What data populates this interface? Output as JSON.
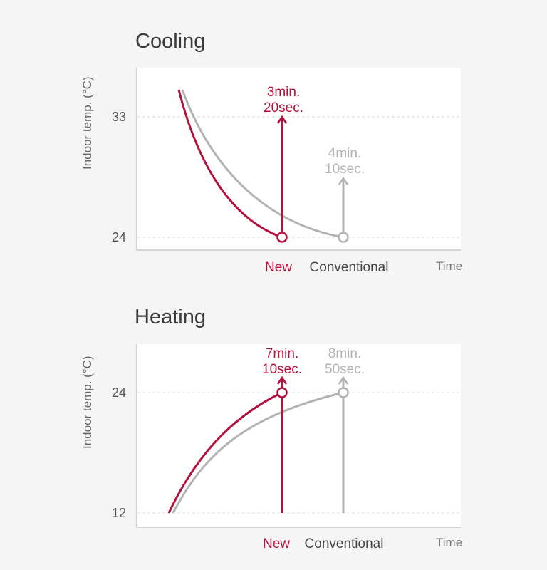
{
  "colors": {
    "new": "#b5113e",
    "conventional": "#b3b3b3",
    "conventional_label": "#444444"
  },
  "chart_data": [
    {
      "type": "line",
      "title": "Cooling",
      "xlabel": "Time",
      "ylabel": "Indoor temp. (°C)",
      "y_ticks": [
        "33",
        "24"
      ],
      "ylim": [
        22,
        38
      ],
      "x_markers": [
        "New",
        "Conventional"
      ],
      "series": [
        {
          "name": "New",
          "annotation": [
            "3min.",
            "20sec."
          ],
          "time_min": 3.33,
          "start_temp": 36,
          "end_temp": 24
        },
        {
          "name": "Conventional",
          "annotation": [
            "4min.",
            "10sec."
          ],
          "time_min": 4.17,
          "start_temp": 36,
          "end_temp": 24
        }
      ]
    },
    {
      "type": "line",
      "title": "Heating",
      "xlabel": "Time",
      "ylabel": "Indoor temp. (°C)",
      "y_ticks": [
        "24",
        "12"
      ],
      "ylim": [
        10,
        28
      ],
      "x_markers": [
        "New",
        "Conventional"
      ],
      "series": [
        {
          "name": "New",
          "annotation": [
            "7min.",
            "10sec."
          ],
          "time_min": 7.17,
          "start_temp": 12,
          "end_temp": 24
        },
        {
          "name": "Conventional",
          "annotation": [
            "8min.",
            "50sec."
          ],
          "time_min": 8.83,
          "start_temp": 12,
          "end_temp": 24
        }
      ]
    }
  ]
}
